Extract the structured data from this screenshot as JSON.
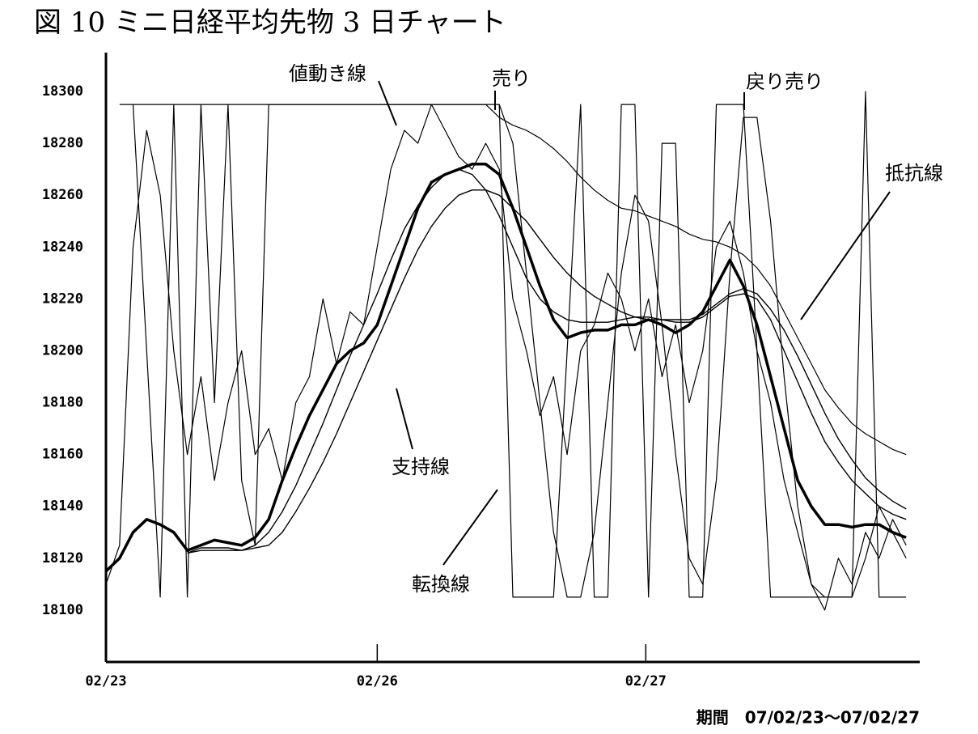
{
  "chart_data": {
    "type": "line",
    "title": "図 10 ミニ日経平均先物 3 日チャート",
    "footer": "期間　07/02/23～07/02/27",
    "annotations": [
      "値動き線",
      "売り",
      "戻り売り",
      "抵抗線",
      "支持線",
      "転換線"
    ],
    "x": [
      0,
      5,
      10,
      15,
      20,
      25,
      30,
      35,
      40,
      45,
      50,
      55,
      60,
      65,
      70,
      75,
      80,
      85,
      90,
      95,
      100,
      105,
      110,
      115,
      120,
      125,
      130,
      135,
      140,
      145,
      150,
      155,
      160,
      165,
      170,
      175,
      180,
      185,
      190,
      195,
      200,
      205,
      210,
      215,
      220,
      225,
      230,
      235,
      240,
      245,
      250,
      255,
      260,
      265,
      270,
      275,
      280,
      285,
      290,
      295
    ],
    "xlim": [
      0,
      300
    ],
    "xticks": [
      {
        "value": 0,
        "label": "02/23"
      },
      {
        "value": 100,
        "label": "02/26"
      },
      {
        "value": 199,
        "label": "02/27"
      }
    ],
    "ylim": [
      18080,
      18315
    ],
    "yticks": [
      18100,
      18120,
      18140,
      18160,
      18180,
      18200,
      18220,
      18240,
      18260,
      18280,
      18300
    ],
    "grid": false,
    "series": [
      {
        "color": "#000000",
        "width": 1.2,
        "values": [
          18110,
          18125,
          18240,
          18285,
          18260,
          18200,
          18160,
          18190,
          18150,
          18180,
          18200,
          18160,
          18170,
          18150,
          18180,
          18190,
          18220,
          18195,
          18215,
          18210,
          18240,
          18270,
          18285,
          18280,
          18295,
          18285,
          18275,
          18270,
          18280,
          18270,
          18220,
          18200,
          18175,
          18190,
          18160,
          18200,
          18210,
          18230,
          18220,
          18200,
          18220,
          18190,
          18210,
          18180,
          18200,
          18240,
          18250,
          18230,
          18200,
          18180,
          18150,
          18130,
          18110,
          18100,
          18120,
          18110,
          18130,
          18120,
          18135,
          18125
        ]
      },
      {
        "color": "#000000",
        "width": 3.5,
        "values": [
          18115,
          18120,
          18130,
          18135,
          18133,
          18130,
          18123,
          18125,
          18127,
          18126,
          18125,
          18128,
          18135,
          18150,
          18163,
          18175,
          18185,
          18195,
          18200,
          18203,
          18210,
          18225,
          18240,
          18255,
          18265,
          18268,
          18270,
          18272,
          18272,
          18268,
          18255,
          18240,
          18225,
          18212,
          18205,
          18207,
          18208,
          18208,
          18210,
          18210,
          18212,
          18210,
          18207,
          18210,
          18215,
          18225,
          18235,
          18225,
          18210,
          18190,
          18170,
          18150,
          18140,
          18133,
          18133,
          18132,
          18133,
          18133,
          18130,
          18128
        ]
      },
      {
        "color": "#000000",
        "width": 1.4,
        "values": [
          null,
          null,
          null,
          null,
          null,
          null,
          18122,
          18124,
          18124,
          18124,
          18123,
          18125,
          18130,
          18138,
          18148,
          18160,
          18172,
          18185,
          18198,
          18210,
          18222,
          18235,
          18247,
          18256,
          18263,
          18268,
          18270,
          18268,
          18262,
          18252,
          18240,
          18228,
          18220,
          18215,
          18212,
          18211,
          18211,
          18211,
          18212,
          18213,
          18213,
          18212,
          18211,
          18211,
          18213,
          18217,
          18221,
          18222,
          18220,
          18212,
          18200,
          18188,
          18176,
          18165,
          18157,
          18150,
          18145,
          18140,
          18137,
          18135
        ]
      },
      {
        "color": "#000000",
        "width": 1.4,
        "values": [
          null,
          null,
          null,
          null,
          null,
          null,
          18122,
          18123,
          18123,
          18123,
          18123,
          18124,
          18125,
          18130,
          18138,
          18147,
          18157,
          18168,
          18180,
          18192,
          18204,
          18216,
          18228,
          18239,
          18248,
          18255,
          18260,
          18262,
          18262,
          18260,
          18255,
          18250,
          18243,
          18236,
          18230,
          18225,
          18221,
          18218,
          18215,
          18213,
          18212,
          18212,
          18212,
          18212,
          18214,
          18218,
          18222,
          18224,
          18222,
          18216,
          18208,
          18198,
          18187,
          18176,
          18166,
          18158,
          18151,
          18146,
          18142,
          18139
        ]
      },
      {
        "color": "#000000",
        "width": 1.2,
        "values": [
          null,
          null,
          18295,
          18295,
          18295,
          18295,
          18295,
          18295,
          18295,
          18295,
          18295,
          18295,
          18295,
          18295,
          18295,
          18295,
          18295,
          18295,
          18295,
          18295,
          18295,
          18295,
          18295,
          18295,
          18295,
          18295,
          18295,
          18295,
          18295,
          18290,
          18287,
          18285,
          18282,
          18278,
          18273,
          18267,
          18262,
          18258,
          18255,
          18254,
          18252,
          18250,
          18248,
          18245,
          18243,
          18242,
          18240,
          18237,
          18232,
          18225,
          18215,
          18205,
          18195,
          18185,
          18178,
          18172,
          18168,
          18165,
          18162,
          18160
        ]
      },
      {
        "color": "#000000",
        "width": 1.2,
        "values": [
          null,
          18295,
          18295,
          18200,
          18105,
          18295,
          18105,
          18295,
          18180,
          18295,
          18150,
          18125,
          18295,
          18295,
          18295,
          18295,
          18295,
          18295,
          18295,
          18295,
          18295,
          18295,
          18295,
          18295,
          18295,
          18295,
          18295,
          18295,
          18295,
          18295,
          18105,
          18105,
          18105,
          18105,
          18200,
          18295,
          18105,
          18105,
          18295,
          18295,
          18105,
          18280,
          18280,
          18105,
          18105,
          18295,
          18295,
          18295,
          18200,
          18105,
          18105,
          18105,
          18105,
          18105,
          18105,
          18105,
          18300,
          18105,
          18105,
          18105
        ]
      },
      {
        "color": "#000000",
        "width": 1.2,
        "values": [
          null,
          null,
          null,
          null,
          null,
          null,
          null,
          null,
          null,
          null,
          null,
          null,
          null,
          null,
          null,
          null,
          null,
          null,
          null,
          null,
          null,
          null,
          null,
          null,
          null,
          null,
          null,
          null,
          null,
          18295,
          18280,
          18230,
          18180,
          18130,
          18105,
          18105,
          18130,
          18180,
          18230,
          18260,
          18250,
          18210,
          18160,
          18120,
          18110,
          18150,
          18230,
          18290,
          18290,
          18250,
          18190,
          18140,
          18110,
          18105,
          18105,
          18105,
          18120,
          18140,
          18130,
          18120
        ]
      }
    ]
  }
}
